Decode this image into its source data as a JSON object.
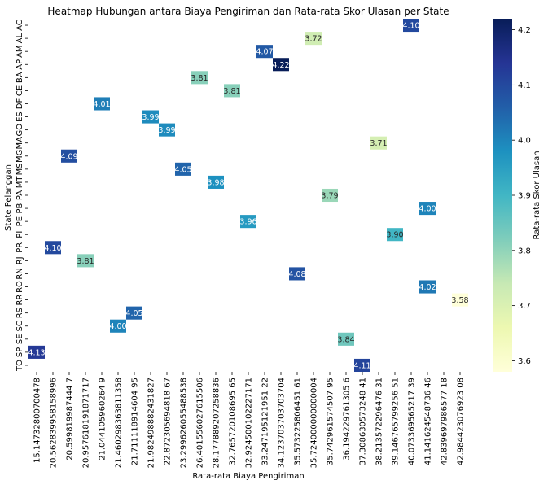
{
  "chart_data": {
    "type": "heatmap",
    "title": "Heatmap Hubungan antara Biaya Pengiriman dan Rata-rata Skor Ulasan per State",
    "xlabel": "Rata-rata Biaya Pengiriman",
    "ylabel": "State Pelanggan",
    "colorbar_label": "Rata-rata Skor Ulasan",
    "colormap": "YlGnBu",
    "vmin": 3.58,
    "vmax": 4.22,
    "colorbar_ticks": [
      "3.6",
      "3.7",
      "3.8",
      "3.9",
      "4.0",
      "4.1",
      "4.2"
    ],
    "x_categories": [
      "15.14732800700478",
      "20.562839958158996",
      "20.599819987444 7",
      "20.957618191871717",
      "21.044105960264 9",
      "21.460298363811358",
      "21.711118914604 95",
      "21.982498882431827",
      "22.872305694818 67",
      "23.299626055488538",
      "26.401556027615506",
      "28.177889207258836",
      "32.765720108695 65",
      "32.924500102227171",
      "33.247195121951 22",
      "34.123703703703704",
      "35.573225806451 61",
      "35.724000000000004",
      "35.742961574507 95",
      "36.194229761305 6",
      "37.308630573248 41",
      "38.213572296476 31",
      "39.146765799256 51",
      "40.073369565217 39",
      "41.141624548736 46",
      "42.839697986577 18",
      "42.984423076923 08"
    ],
    "y_categories": [
      "AC",
      "AL",
      "AM",
      "AP",
      "BA",
      "CE",
      "DF",
      "ES",
      "GO",
      "MA",
      "MG",
      "MS",
      "MT",
      "PA",
      "PB",
      "PE",
      "PI",
      "PR",
      "RJ",
      "RN",
      "RO",
      "RR",
      "RS",
      "SC",
      "SE",
      "SP",
      "TO"
    ],
    "cells": [
      {
        "row": "AC",
        "col": 23,
        "value": 4.1,
        "label": "4.10"
      },
      {
        "row": "AL",
        "col": 17,
        "value": 3.72,
        "label": "3.72"
      },
      {
        "row": "AM",
        "col": 14,
        "value": 4.07,
        "label": "4.07"
      },
      {
        "row": "AP",
        "col": 15,
        "value": 4.22,
        "label": "4.22"
      },
      {
        "row": "BA",
        "col": 10,
        "value": 3.81,
        "label": "3.81"
      },
      {
        "row": "CE",
        "col": 12,
        "value": 3.81,
        "label": "3.81"
      },
      {
        "row": "DF",
        "col": 4,
        "value": 4.01,
        "label": "4.01"
      },
      {
        "row": "ES",
        "col": 7,
        "value": 3.99,
        "label": "3.99"
      },
      {
        "row": "GO",
        "col": 8,
        "value": 3.99,
        "label": "3.99"
      },
      {
        "row": "MA",
        "col": 21,
        "value": 3.71,
        "label": "3.71"
      },
      {
        "row": "MG",
        "col": 2,
        "value": 4.09,
        "label": "4.09"
      },
      {
        "row": "MS",
        "col": 9,
        "value": 4.05,
        "label": "4.05"
      },
      {
        "row": "MT",
        "col": 11,
        "value": 3.98,
        "label": "3.98"
      },
      {
        "row": "PA",
        "col": 18,
        "value": 3.79,
        "label": "3.79"
      },
      {
        "row": "PB",
        "col": 24,
        "value": 4.0,
        "label": "4.00"
      },
      {
        "row": "PE",
        "col": 13,
        "value": 3.96,
        "label": "3.96"
      },
      {
        "row": "PI",
        "col": 22,
        "value": 3.9,
        "label": "3.90"
      },
      {
        "row": "PR",
        "col": 1,
        "value": 4.1,
        "label": "4.10"
      },
      {
        "row": "RJ",
        "col": 3,
        "value": 3.81,
        "label": "3.81"
      },
      {
        "row": "RN",
        "col": 16,
        "value": 4.08,
        "label": "4.08"
      },
      {
        "row": "RO",
        "col": 24,
        "value": 4.02,
        "label": "4.02"
      },
      {
        "row": "RR",
        "col": 26,
        "value": 3.58,
        "label": "3.58"
      },
      {
        "row": "RS",
        "col": 6,
        "value": 4.05,
        "label": "4.05"
      },
      {
        "row": "SC",
        "col": 5,
        "value": 4.0,
        "label": "4.00"
      },
      {
        "row": "SE",
        "col": 19,
        "value": 3.84,
        "label": "3.84"
      },
      {
        "row": "SP",
        "col": 0,
        "value": 4.13,
        "label": "4.13"
      },
      {
        "row": "TO",
        "col": 20,
        "value": 4.11,
        "label": "4.11"
      }
    ]
  }
}
